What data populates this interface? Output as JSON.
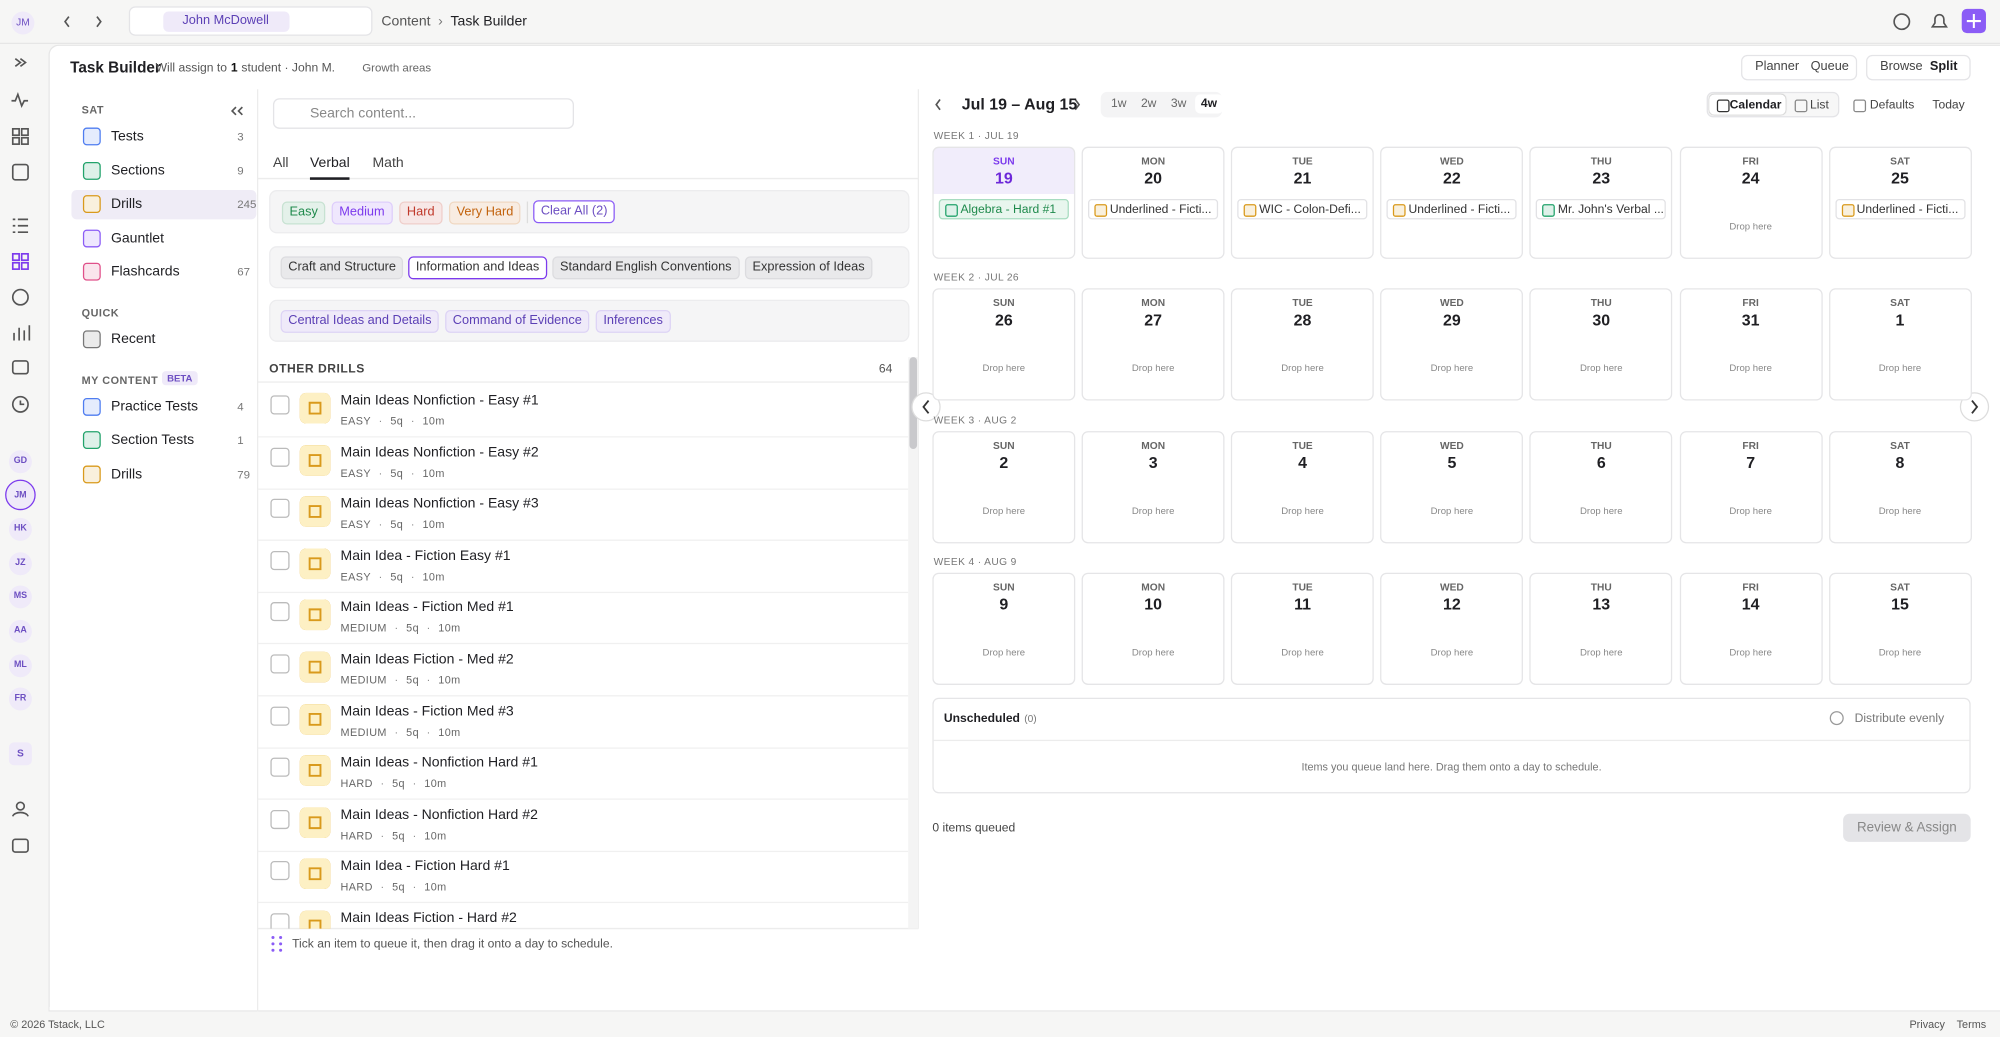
{
  "topbar": {
    "avatar": "JM",
    "student_chip": "John McDowell",
    "breadcrumb": [
      "Content",
      "Task Builder"
    ]
  },
  "header": {
    "title": "Task Builder",
    "assign_prefix": "Will assign to",
    "assign_count": "1",
    "assign_suffix": "student · John M.",
    "growth": "Growth areas",
    "mode_tabs": [
      "Planner",
      "Queue"
    ],
    "layout_tabs": [
      "Browse",
      "Split"
    ],
    "active_layout": 1
  },
  "rail": {
    "avatars": [
      "GD",
      "JM",
      "HK",
      "JZ",
      "MS",
      "AA",
      "ML",
      "FR"
    ],
    "active_avatar": 1,
    "workspace": "S"
  },
  "sidebar": {
    "groups": [
      {
        "title": "SAT",
        "items": [
          {
            "label": "Tests",
            "count": "3",
            "color": "#4f7df0"
          },
          {
            "label": "Sections",
            "count": "9",
            "color": "#22a36b"
          },
          {
            "label": "Drills",
            "count": "245",
            "color": "#d99a1c",
            "active": true
          },
          {
            "label": "Gauntlet",
            "color": "#8b5cf6"
          },
          {
            "label": "Flashcards",
            "count": "67",
            "color": "#e0508a"
          }
        ]
      },
      {
        "title": "QUICK",
        "items": [
          {
            "label": "Recent",
            "color": "#777777"
          }
        ]
      },
      {
        "title": "MY CONTENT",
        "badge": "BETA",
        "items": [
          {
            "label": "Practice Tests",
            "count": "4",
            "color": "#4f7df0"
          },
          {
            "label": "Section Tests",
            "count": "1",
            "color": "#22a36b"
          },
          {
            "label": "Drills",
            "count": "79",
            "color": "#d99a1c"
          }
        ]
      }
    ]
  },
  "content": {
    "search_placeholder": "Search content...",
    "tabs": [
      "All",
      "Verbal",
      "Math"
    ],
    "active_tab": 1,
    "difficulty": [
      {
        "label": "Easy",
        "color": "#1f8a4c"
      },
      {
        "label": "Medium",
        "color": "#7c3aed"
      },
      {
        "label": "Hard",
        "color": "#c0392b"
      },
      {
        "label": "Very Hard",
        "color": "#c2620c"
      }
    ],
    "clear": "Clear All (2)",
    "domains": [
      "Craft and Structure",
      "Information and Ideas",
      "Standard English Conventions",
      "Expression of Ideas"
    ],
    "active_domain": 1,
    "skills": [
      "Central Ideas and Details",
      "Command of Evidence",
      "Inferences"
    ],
    "list_title": "OTHER DRILLS",
    "list_count": "64",
    "items": [
      {
        "title": "Main Ideas Nonfiction - Easy #1",
        "level": "EASY",
        "questions": "5q",
        "time": "10m"
      },
      {
        "title": "Main Ideas Nonfiction - Easy #2",
        "level": "EASY",
        "questions": "5q",
        "time": "10m"
      },
      {
        "title": "Main Ideas Nonfiction - Easy #3",
        "level": "EASY",
        "questions": "5q",
        "time": "10m"
      },
      {
        "title": "Main Idea - Fiction Easy #1",
        "level": "EASY",
        "questions": "5q",
        "time": "10m"
      },
      {
        "title": "Main Ideas - Fiction Med #1",
        "level": "MEDIUM",
        "questions": "5q",
        "time": "10m"
      },
      {
        "title": "Main Ideas Fiction - Med #2",
        "level": "MEDIUM",
        "questions": "5q",
        "time": "10m"
      },
      {
        "title": "Main Ideas - Fiction Med #3",
        "level": "MEDIUM",
        "questions": "5q",
        "time": "10m"
      },
      {
        "title": "Main Ideas - Nonfiction Hard #1",
        "level": "HARD",
        "questions": "5q",
        "time": "10m"
      },
      {
        "title": "Main Ideas - Nonfiction Hard #2",
        "level": "HARD",
        "questions": "5q",
        "time": "10m"
      },
      {
        "title": "Main Idea - Fiction Hard #1",
        "level": "HARD",
        "questions": "5q",
        "time": "10m"
      },
      {
        "title": "Main Ideas Fiction - Hard #2"
      }
    ],
    "hint": "Tick an item to queue it, then drag it onto a day to schedule."
  },
  "planner": {
    "range": "Jul 19 – Aug 15",
    "spans": [
      "1w",
      "2w",
      "3w",
      "4w"
    ],
    "active_span": 3,
    "views": [
      "Calendar",
      "List",
      "Defaults",
      "Today"
    ],
    "drop_label": "Drop here",
    "weeks": [
      {
        "label": "WEEK 1 · JUL 19",
        "days": [
          {
            "dow": "SUN",
            "num": 19,
            "today": true,
            "item": "Algebra - Hard #1",
            "kind": "math"
          },
          {
            "dow": "MON",
            "num": 20,
            "item": "Underlined - Ficti...",
            "kind": "drill"
          },
          {
            "dow": "TUE",
            "num": 21,
            "item": "WIC - Colon-Defi...",
            "kind": "drill"
          },
          {
            "dow": "WED",
            "num": 22,
            "item": "Underlined - Ficti...",
            "kind": "drill"
          },
          {
            "dow": "THU",
            "num": 23,
            "item": "Mr. John's Verbal ...",
            "kind": "section"
          },
          {
            "dow": "FRI",
            "num": 24
          },
          {
            "dow": "SAT",
            "num": 25,
            "item": "Underlined - Ficti...",
            "kind": "drill"
          }
        ]
      },
      {
        "label": "WEEK 2 · JUL 26",
        "days": [
          {
            "dow": "SUN",
            "num": 26
          },
          {
            "dow": "MON",
            "num": 27
          },
          {
            "dow": "TUE",
            "num": 28
          },
          {
            "dow": "WED",
            "num": 29
          },
          {
            "dow": "THU",
            "num": 30
          },
          {
            "dow": "FRI",
            "num": 31
          },
          {
            "dow": "SAT",
            "num": 1
          }
        ]
      },
      {
        "label": "WEEK 3 · AUG 2",
        "days": [
          {
            "dow": "SUN",
            "num": 2
          },
          {
            "dow": "MON",
            "num": 3
          },
          {
            "dow": "TUE",
            "num": 4
          },
          {
            "dow": "WED",
            "num": 5
          },
          {
            "dow": "THU",
            "num": 6
          },
          {
            "dow": "FRI",
            "num": 7
          },
          {
            "dow": "SAT",
            "num": 8
          }
        ]
      },
      {
        "label": "WEEK 4 · AUG 9",
        "days": [
          {
            "dow": "SUN",
            "num": 9
          },
          {
            "dow": "MON",
            "num": 10
          },
          {
            "dow": "TUE",
            "num": 11
          },
          {
            "dow": "WED",
            "num": 12
          },
          {
            "dow": "THU",
            "num": 13
          },
          {
            "dow": "FRI",
            "num": 14
          },
          {
            "dow": "SAT",
            "num": 15
          }
        ]
      }
    ],
    "unscheduled": "Unscheduled",
    "unscheduled_count": "(0)",
    "distribute": "Distribute evenly",
    "unscheduled_empty": "Items you queue land here. Drag them onto a day to schedule.",
    "queued": "0 items queued",
    "submit": "Review & Assign"
  },
  "footer": {
    "copyright": "© 2026 Tstack, LLC",
    "links": [
      "Privacy",
      "Terms"
    ]
  }
}
